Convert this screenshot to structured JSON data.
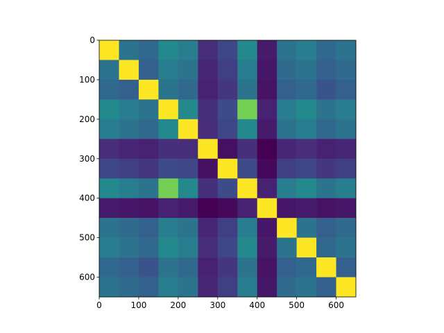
{
  "chart_data": {
    "type": "heatmap",
    "colormap": "viridis",
    "xlim": [
      0,
      650
    ],
    "ylim": [
      650,
      0
    ],
    "xticks": [
      0,
      100,
      200,
      300,
      400,
      500,
      600
    ],
    "yticks": [
      0,
      100,
      200,
      300,
      400,
      500,
      600
    ],
    "values": [
      [
        1,
        0.41,
        0.37,
        0.5,
        0.45,
        0.17,
        0.25,
        0.5,
        0.12,
        0.41,
        0.45,
        0.37,
        0.41
      ],
      [
        0.41,
        1,
        0.34,
        0.45,
        0.41,
        0.15,
        0.23,
        0.45,
        0.11,
        0.38,
        0.41,
        0.34,
        0.38
      ],
      [
        0.37,
        0.34,
        1,
        0.41,
        0.37,
        0.14,
        0.2,
        0.41,
        0.1,
        0.34,
        0.37,
        0.3,
        0.34
      ],
      [
        0.5,
        0.45,
        0.41,
        1,
        0.5,
        0.18,
        0.27,
        0.8,
        0.14,
        0.45,
        0.5,
        0.41,
        0.45
      ],
      [
        0.45,
        0.41,
        0.37,
        0.5,
        1,
        0.17,
        0.25,
        0.5,
        0.12,
        0.41,
        0.45,
        0.37,
        0.41
      ],
      [
        0.17,
        0.15,
        0.14,
        0.18,
        0.17,
        1,
        0.09,
        0.18,
        0.05,
        0.15,
        0.17,
        0.14,
        0.15
      ],
      [
        0.25,
        0.23,
        0.2,
        0.27,
        0.25,
        0.09,
        1,
        0.27,
        0.07,
        0.23,
        0.25,
        0.2,
        0.23
      ],
      [
        0.5,
        0.45,
        0.41,
        0.8,
        0.5,
        0.18,
        0.27,
        1,
        0.14,
        0.45,
        0.5,
        0.41,
        0.45
      ],
      [
        0.12,
        0.11,
        0.1,
        0.14,
        0.12,
        0.05,
        0.07,
        0.14,
        1,
        0.11,
        0.12,
        0.1,
        0.11
      ],
      [
        0.41,
        0.38,
        0.34,
        0.45,
        0.41,
        0.15,
        0.23,
        0.45,
        0.11,
        1,
        0.41,
        0.34,
        0.38
      ],
      [
        0.45,
        0.41,
        0.37,
        0.5,
        0.45,
        0.17,
        0.25,
        0.5,
        0.12,
        0.41,
        1,
        0.37,
        0.41
      ],
      [
        0.37,
        0.34,
        0.3,
        0.41,
        0.37,
        0.14,
        0.2,
        0.41,
        0.1,
        0.34,
        0.37,
        1,
        0.34
      ],
      [
        0.41,
        0.38,
        0.34,
        0.45,
        0.41,
        0.15,
        0.23,
        0.45,
        0.11,
        0.38,
        0.41,
        0.34,
        1
      ]
    ]
  }
}
